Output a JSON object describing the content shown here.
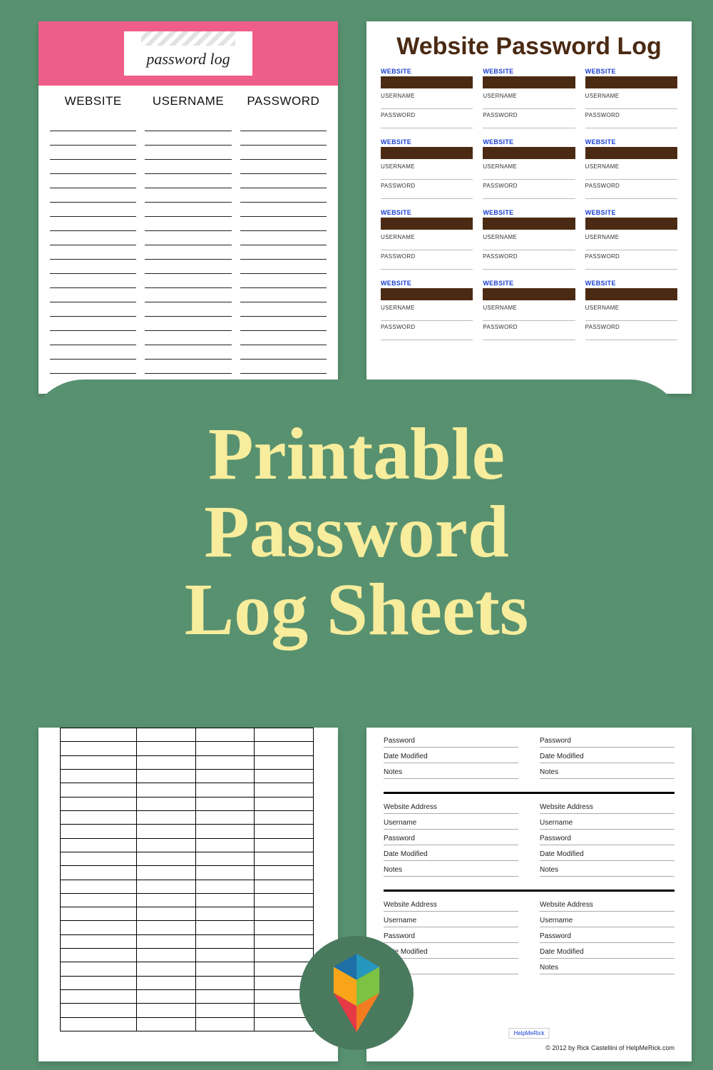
{
  "background_color": "#589170",
  "overlay": {
    "line1": "Printable",
    "line2": "Password",
    "line3": "Log Sheets",
    "text_color": "#f7ed9c",
    "font_family": "Georgia serif",
    "font_size_pt": 78
  },
  "card1": {
    "banner_color": "#ef5d8b",
    "title": "password log",
    "columns": [
      "WEBSITE",
      "USERNAME",
      "PASSWORD"
    ],
    "rule_rows": 18,
    "rule_color": "#222222"
  },
  "card2": {
    "title": "Website Password Log",
    "title_color": "#4b2a13",
    "cell_bar_color": "#4b2a13",
    "label_website": "WEBSITE",
    "label_website_color": "#1a3fcf",
    "label_username": "USERNAME",
    "label_password": "PASSWORD",
    "grid_rows": 4,
    "grid_cols": 3
  },
  "card3": {
    "type": "table",
    "columns": 4,
    "rows": 22,
    "border_color": "#000000"
  },
  "card4": {
    "fields": [
      "Website Address",
      "Username",
      "Password",
      "Date Modified",
      "Notes"
    ],
    "partial_top_fields": [
      "Password",
      "Date Modified",
      "Notes"
    ],
    "blocks": 3,
    "columns": 2,
    "separator_color": "#000000",
    "footer": "© 2012 by Rick Castellini of HelpMeRick.com",
    "footlogo": "HelpMeRick"
  },
  "badge": {
    "circle_color": "#4a7a5e",
    "tri_colors": [
      "#2596be",
      "#1d6fa5",
      "#f47c20",
      "#f9a51a",
      "#e63946",
      "#7cc243"
    ]
  }
}
